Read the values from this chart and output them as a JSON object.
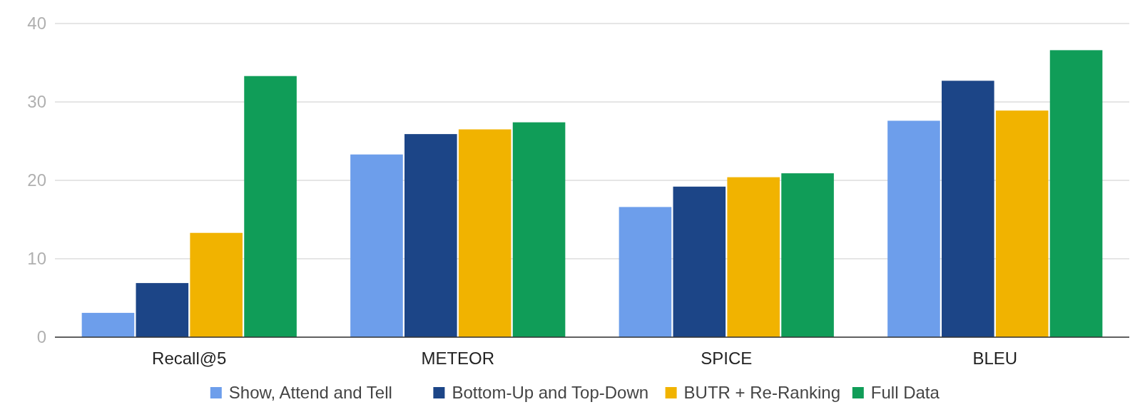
{
  "chart_data": {
    "type": "bar",
    "categories": [
      "Recall@5",
      "METEOR",
      "SPICE",
      "BLEU"
    ],
    "series": [
      {
        "name": "Show, Attend and Tell",
        "color": "#6d9eeb",
        "values": [
          3.1,
          23.3,
          16.6,
          27.6
        ]
      },
      {
        "name": "Bottom-Up and Top-Down",
        "color": "#1c4587",
        "values": [
          6.9,
          25.9,
          19.2,
          32.7
        ]
      },
      {
        "name": "BUTR + Re-Ranking",
        "color": "#f1b300",
        "values": [
          13.3,
          26.5,
          20.4,
          28.9
        ]
      },
      {
        "name": "Full Data",
        "color": "#109d58",
        "values": [
          33.3,
          27.4,
          20.9,
          36.6
        ]
      }
    ],
    "ylim": [
      0,
      40
    ],
    "yticks": [
      0,
      10,
      20,
      30,
      40
    ],
    "grid": "y",
    "legend": "bottom"
  }
}
